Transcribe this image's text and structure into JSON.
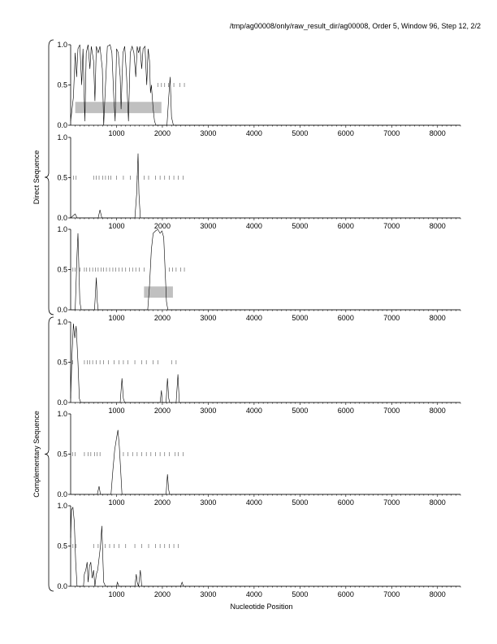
{
  "header": "/tmp/ag00008/only/raw_result_dir/ag00008, Order 5, Window 96, Step 12, 2/2",
  "chart_data": {
    "type": "line",
    "xlabel": "Nucleotide Position",
    "xlim": [
      0,
      8500
    ],
    "ylim": [
      0,
      1
    ],
    "xticks": [
      1000,
      2000,
      3000,
      4000,
      5000,
      6000,
      7000,
      8000
    ],
    "yticks": [
      0.0,
      0.5,
      1.0
    ],
    "ytick_labels": [
      "0.0",
      "0.5",
      "1.0"
    ],
    "groups": [
      {
        "label": "Direct Sequence",
        "panels": [
          0,
          1,
          2
        ]
      },
      {
        "label": "Complementary Sequence",
        "panels": [
          3,
          4,
          5
        ]
      }
    ],
    "panels": [
      {
        "series": [
          [
            0,
            0.05
          ],
          [
            60,
            0.35
          ],
          [
            100,
            0.9
          ],
          [
            130,
            0.6
          ],
          [
            160,
            0.95
          ],
          [
            200,
            1.0
          ],
          [
            240,
            0.5
          ],
          [
            270,
            0.95
          ],
          [
            310,
            0.05
          ],
          [
            340,
            0.9
          ],
          [
            380,
            1.0
          ],
          [
            420,
            0.7
          ],
          [
            450,
            0.98
          ],
          [
            500,
            0.8
          ],
          [
            530,
            0.3
          ],
          [
            560,
            0.98
          ],
          [
            600,
            0.9
          ],
          [
            640,
            0.98
          ],
          [
            690,
            0.7
          ],
          [
            720,
            0.0
          ],
          [
            760,
            0.5
          ],
          [
            800,
            0.98
          ],
          [
            860,
            1.0
          ],
          [
            900,
            0.9
          ],
          [
            940,
            0.35
          ],
          [
            970,
            0.05
          ],
          [
            1000,
            0.95
          ],
          [
            1040,
            0.9
          ],
          [
            1080,
            0.6
          ],
          [
            1100,
            0.2
          ],
          [
            1140,
            0.9
          ],
          [
            1180,
            0.98
          ],
          [
            1220,
            0.6
          ],
          [
            1260,
            0.05
          ],
          [
            1300,
            0.9
          ],
          [
            1340,
            0.98
          ],
          [
            1380,
            0.9
          ],
          [
            1420,
            0.6
          ],
          [
            1450,
            0.98
          ],
          [
            1480,
            0.9
          ],
          [
            1510,
            0.98
          ],
          [
            1550,
            0.7
          ],
          [
            1580,
            0.95
          ],
          [
            1620,
            0.98
          ],
          [
            1660,
            0.5
          ],
          [
            1690,
            0.95
          ],
          [
            1720,
            0.8
          ],
          [
            1740,
            0.4
          ],
          [
            1760,
            0.5
          ],
          [
            1800,
            0.2
          ],
          [
            1830,
            0.05
          ],
          [
            1860,
            0.0
          ],
          [
            2100,
            0.0
          ],
          [
            2140,
            0.35
          ],
          [
            2170,
            0.6
          ],
          [
            2200,
            0.1
          ],
          [
            2240,
            0.0
          ],
          [
            8500,
            0.0
          ]
        ],
        "stop_codons": [
          1900,
          1980,
          2050,
          2130,
          2250,
          2380,
          2480
        ],
        "orf_box": [
          100,
          1980
        ]
      },
      {
        "series": [
          [
            0,
            0.0
          ],
          [
            100,
            0.05
          ],
          [
            140,
            0.0
          ],
          [
            600,
            0.0
          ],
          [
            640,
            0.1
          ],
          [
            680,
            0.0
          ],
          [
            1400,
            0.0
          ],
          [
            1440,
            0.3
          ],
          [
            1470,
            0.8
          ],
          [
            1490,
            0.3
          ],
          [
            1520,
            0.0
          ],
          [
            8500,
            0.0
          ]
        ],
        "stop_codons": [
          60,
          120,
          500,
          560,
          620,
          700,
          760,
          820,
          880,
          1000,
          1150,
          1300,
          1450,
          1600,
          1700,
          1850,
          1950,
          2050,
          2150,
          2250,
          2350,
          2450
        ],
        "orf_box": null
      },
      {
        "series": [
          [
            0,
            0.0
          ],
          [
            100,
            0.0
          ],
          [
            140,
            0.7
          ],
          [
            160,
            0.95
          ],
          [
            180,
            0.5
          ],
          [
            200,
            0.1
          ],
          [
            230,
            0.0
          ],
          [
            520,
            0.0
          ],
          [
            560,
            0.4
          ],
          [
            580,
            0.1
          ],
          [
            600,
            0.0
          ],
          [
            1680,
            0.0
          ],
          [
            1720,
            0.3
          ],
          [
            1760,
            0.75
          ],
          [
            1800,
            0.95
          ],
          [
            1850,
            0.98
          ],
          [
            1900,
            1.0
          ],
          [
            1950,
            0.95
          ],
          [
            1990,
            0.98
          ],
          [
            2030,
            0.9
          ],
          [
            2060,
            0.5
          ],
          [
            2090,
            0.1
          ],
          [
            2120,
            0.0
          ],
          [
            8500,
            0.0
          ]
        ],
        "stop_codons": [
          50,
          100,
          200,
          300,
          350,
          420,
          480,
          540,
          600,
          660,
          720,
          780,
          850,
          920,
          980,
          1050,
          1120,
          1200,
          1280,
          1350,
          1420,
          1500,
          1600,
          2150,
          2220,
          2300,
          2400,
          2480
        ],
        "orf_box": [
          1600,
          2230
        ]
      },
      {
        "series": [
          [
            0,
            0.05
          ],
          [
            30,
            0.6
          ],
          [
            60,
            0.98
          ],
          [
            90,
            0.8
          ],
          [
            120,
            0.95
          ],
          [
            160,
            0.5
          ],
          [
            190,
            0.05
          ],
          [
            220,
            0.0
          ],
          [
            1080,
            0.0
          ],
          [
            1120,
            0.3
          ],
          [
            1150,
            0.05
          ],
          [
            1180,
            0.0
          ],
          [
            1950,
            0.0
          ],
          [
            1980,
            0.15
          ],
          [
            2000,
            0.0
          ],
          [
            2080,
            0.0
          ],
          [
            2110,
            0.3
          ],
          [
            2140,
            0.05
          ],
          [
            2160,
            0.0
          ],
          [
            2300,
            0.0
          ],
          [
            2340,
            0.35
          ],
          [
            2370,
            0.0
          ],
          [
            8500,
            0.0
          ]
        ],
        "stop_codons": [
          40,
          300,
          360,
          420,
          480,
          560,
          640,
          720,
          820,
          950,
          1050,
          1150,
          1250,
          1400,
          1550,
          1650,
          1800,
          1900,
          2200,
          2300
        ],
        "orf_box": null
      },
      {
        "series": [
          [
            0,
            0.0
          ],
          [
            580,
            0.0
          ],
          [
            620,
            0.1
          ],
          [
            650,
            0.0
          ],
          [
            880,
            0.0
          ],
          [
            920,
            0.3
          ],
          [
            960,
            0.55
          ],
          [
            1000,
            0.7
          ],
          [
            1030,
            0.8
          ],
          [
            1060,
            0.6
          ],
          [
            1090,
            0.3
          ],
          [
            1120,
            0.0
          ],
          [
            2080,
            0.0
          ],
          [
            2110,
            0.25
          ],
          [
            2140,
            0.05
          ],
          [
            2160,
            0.0
          ],
          [
            8500,
            0.0
          ]
        ],
        "stop_codons": [
          40,
          100,
          300,
          380,
          440,
          520,
          580,
          640,
          1150,
          1250,
          1350,
          1450,
          1550,
          1650,
          1750,
          1850,
          1950,
          2050,
          2150,
          2280,
          2350,
          2450
        ],
        "orf_box": null
      },
      {
        "series": [
          [
            0,
            0.6
          ],
          [
            20,
            0.95
          ],
          [
            50,
            0.98
          ],
          [
            80,
            0.8
          ],
          [
            110,
            0.3
          ],
          [
            140,
            0.0
          ],
          [
            280,
            0.0
          ],
          [
            300,
            0.15
          ],
          [
            330,
            0.2
          ],
          [
            360,
            0.3
          ],
          [
            380,
            0.05
          ],
          [
            410,
            0.25
          ],
          [
            440,
            0.3
          ],
          [
            470,
            0.1
          ],
          [
            500,
            0.2
          ],
          [
            530,
            0.0
          ],
          [
            560,
            0.15
          ],
          [
            590,
            0.2
          ],
          [
            620,
            0.35
          ],
          [
            650,
            0.5
          ],
          [
            680,
            0.75
          ],
          [
            700,
            0.4
          ],
          [
            720,
            0.05
          ],
          [
            760,
            0.0
          ],
          [
            1000,
            0.0
          ],
          [
            1020,
            0.05
          ],
          [
            1050,
            0.0
          ],
          [
            1400,
            0.0
          ],
          [
            1430,
            0.15
          ],
          [
            1450,
            0.05
          ],
          [
            1480,
            0.0
          ],
          [
            1500,
            0.1
          ],
          [
            1520,
            0.2
          ],
          [
            1550,
            0.0
          ],
          [
            2400,
            0.0
          ],
          [
            2430,
            0.05
          ],
          [
            2460,
            0.0
          ],
          [
            8500,
            0.0
          ]
        ],
        "stop_codons": [
          50,
          120,
          500,
          600,
          750,
          850,
          950,
          1050,
          1200,
          1400,
          1550,
          1700,
          1850,
          1950,
          2050,
          2150,
          2250,
          2350
        ],
        "orf_box": null
      }
    ]
  }
}
